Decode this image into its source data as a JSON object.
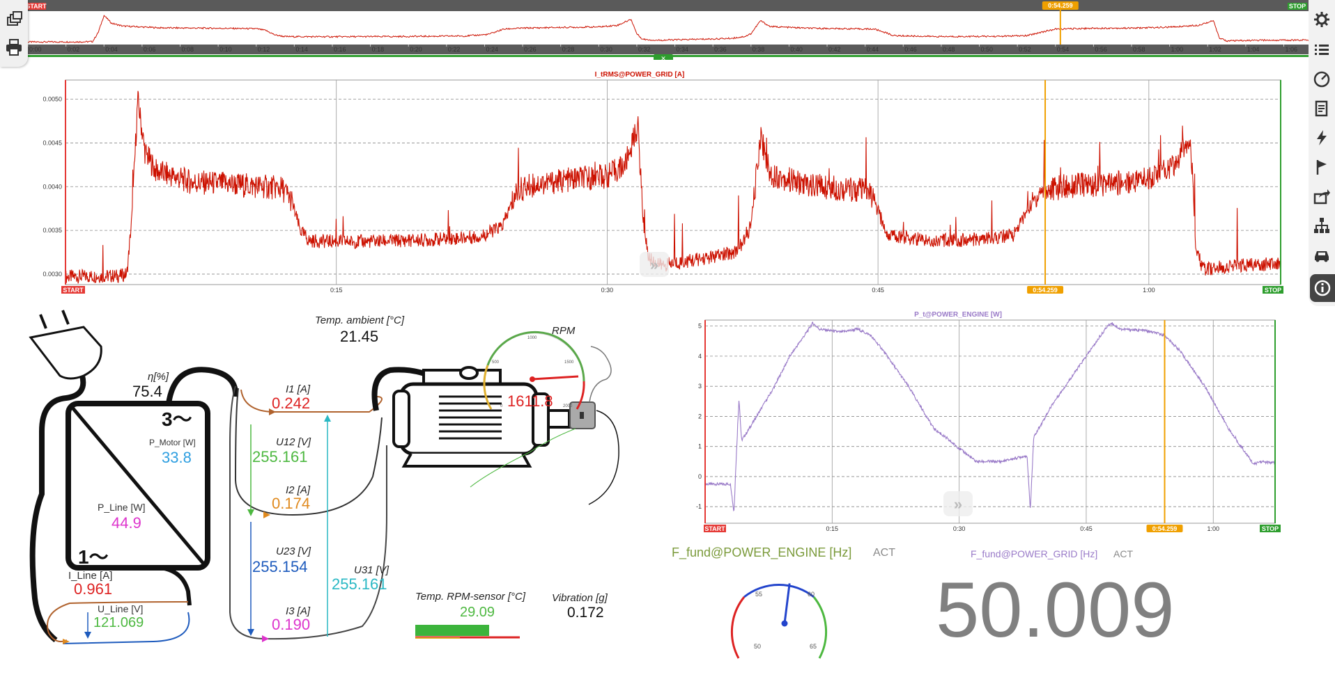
{
  "colors": {
    "grid_trace": "#cc1100",
    "engine_trace": "#9a7bc8",
    "cursor": "#f0a000",
    "start": "#e53935",
    "stop": "#2e9e2e",
    "blue": "#1e5bbd",
    "green": "#4db840",
    "orange": "#e08a1e",
    "magenta": "#dd33cc",
    "red": "#dd2222",
    "cyan": "#2ab8c4",
    "sky": "#2d9ee0",
    "gray": "#8a8a8a"
  },
  "overview": {
    "start_label": "START",
    "stop_label": "STOP",
    "cursor_label": "0:54.259",
    "ticks": [
      "0:00",
      "0:02",
      "0:04",
      "0:06",
      "0:08",
      "0:10",
      "0:12",
      "0:14",
      "0:16",
      "0:18",
      "0:20",
      "0:22",
      "0:24",
      "0:26",
      "0:28",
      "0:30",
      "0:32",
      "0:34",
      "0:36",
      "0:38",
      "0:40",
      "0:42",
      "0:44",
      "0:46",
      "0:48",
      "0:50",
      "0:52",
      "0:54",
      "0:56",
      "0:58",
      "1:00",
      "1:02",
      "1:04",
      "1:06"
    ]
  },
  "toolbar": {
    "left": [
      "windows-icon",
      "print-icon"
    ],
    "right": [
      "gear-icon",
      "list-icon",
      "gauge-icon",
      "report-icon",
      "lightning-icon",
      "flag-icon",
      "export-icon",
      "hierarchy-icon",
      "car-icon",
      "info-icon"
    ]
  },
  "chart_data": [
    {
      "type": "line",
      "title": "I_tRMS@POWER_GRID [A]",
      "x_ticks": [
        "0:15",
        "0:30",
        "0:45",
        "1:00"
      ],
      "x_tick_seconds": [
        15,
        30,
        45,
        60
      ],
      "xlim": [
        0,
        67.3
      ],
      "y_ticks": [
        "0.0030",
        "0.0035",
        "0.0040",
        "0.0045",
        "0.0050"
      ],
      "ylim": [
        0.00288,
        0.00522
      ],
      "series": [
        {
          "values": [
            [
              0,
              0.00297
            ],
            [
              3,
              0.00298
            ],
            [
              3.4,
              0.003
            ],
            [
              3.7,
              0.0037
            ],
            [
              4,
              0.005
            ],
            [
              4.4,
              0.0044
            ],
            [
              5,
              0.00418
            ],
            [
              7,
              0.00405
            ],
            [
              9,
              0.00403
            ],
            [
              11,
              0.004
            ],
            [
              12,
              0.00398
            ],
            [
              12.5,
              0.00385
            ],
            [
              13,
              0.0035
            ],
            [
              13.5,
              0.00338
            ],
            [
              16,
              0.00337
            ],
            [
              20,
              0.00339
            ],
            [
              23,
              0.00343
            ],
            [
              24.2,
              0.00355
            ],
            [
              25,
              0.00395
            ],
            [
              26,
              0.00403
            ],
            [
              28,
              0.00408
            ],
            [
              30,
              0.00412
            ],
            [
              31,
              0.00425
            ],
            [
              31.7,
              0.0047
            ],
            [
              32,
              0.0036
            ],
            [
              32.3,
              0.00318
            ],
            [
              33,
              0.0031
            ],
            [
              36,
              0.0032
            ],
            [
              37,
              0.00325
            ],
            [
              37.7,
              0.0034
            ],
            [
              38,
              0.0036
            ],
            [
              38.5,
              0.0046
            ],
            [
              39,
              0.00415
            ],
            [
              41,
              0.00402
            ],
            [
              43,
              0.00398
            ],
            [
              44.5,
              0.00395
            ],
            [
              45,
              0.00372
            ],
            [
              45.5,
              0.00345
            ],
            [
              48,
              0.00338
            ],
            [
              51,
              0.0034
            ],
            [
              52.5,
              0.00345
            ],
            [
              53.2,
              0.0037
            ],
            [
              54,
              0.00395
            ],
            [
              56,
              0.00402
            ],
            [
              58,
              0.00403
            ],
            [
              60,
              0.0041
            ],
            [
              61.5,
              0.00425
            ],
            [
              62.3,
              0.0046
            ],
            [
              62.6,
              0.0033
            ],
            [
              63,
              0.00305
            ],
            [
              65,
              0.0031
            ],
            [
              67.3,
              0.00312
            ]
          ]
        }
      ],
      "markers": {
        "start": "START",
        "stop": "STOP",
        "cursor": "0:54.259",
        "cursor_s": 54.259
      }
    },
    {
      "type": "line",
      "title": "P_t@POWER_ENGINE [W]",
      "x_ticks": [
        "0:15",
        "0:30",
        "0:45",
        "1:00"
      ],
      "x_tick_seconds": [
        15,
        30,
        45,
        60
      ],
      "xlim": [
        0,
        67.3
      ],
      "y_ticks": [
        "-1",
        "0",
        "1",
        "2",
        "3",
        "4",
        "5"
      ],
      "ylim": [
        -1.55,
        5.2
      ],
      "series": [
        {
          "values": [
            [
              0,
              -0.25
            ],
            [
              3,
              -0.25
            ],
            [
              3.4,
              -1.2
            ],
            [
              3.7,
              0.8
            ],
            [
              4,
              2.6
            ],
            [
              4.3,
              1.2
            ],
            [
              5,
              1.5
            ],
            [
              8,
              2.9
            ],
            [
              10,
              4.0
            ],
            [
              12,
              4.8
            ],
            [
              12.7,
              5.1
            ],
            [
              13.5,
              4.9
            ],
            [
              16,
              4.8
            ],
            [
              18,
              4.9
            ],
            [
              19.5,
              4.7
            ],
            [
              21,
              4.2
            ],
            [
              24,
              3.0
            ],
            [
              27,
              1.6
            ],
            [
              32,
              0.5
            ],
            [
              35,
              0.5
            ],
            [
              38,
              0.7
            ],
            [
              38.4,
              -1.1
            ],
            [
              38.8,
              1.3
            ],
            [
              41,
              2.4
            ],
            [
              44,
              3.6
            ],
            [
              47.5,
              5.0
            ],
            [
              48,
              5.1
            ],
            [
              49,
              4.9
            ],
            [
              52,
              4.85
            ],
            [
              54.2,
              4.7
            ],
            [
              56,
              4.2
            ],
            [
              59,
              3.0
            ],
            [
              62,
              1.5
            ],
            [
              64.8,
              0.4
            ],
            [
              65.5,
              0.5
            ],
            [
              67.3,
              0.45
            ]
          ]
        }
      ],
      "markers": {
        "start": "START",
        "stop": "STOP",
        "cursor": "0:54.259",
        "cursor_s": 54.259
      }
    }
  ],
  "diagram": {
    "eta": {
      "label": "η[%]",
      "value": "75.4"
    },
    "converter_3": "3～",
    "converter_1": "1～",
    "p_motor": {
      "label": "P_Motor [W]",
      "value": "33.8"
    },
    "p_line": {
      "label": "P_Line [W]",
      "value": "44.9"
    },
    "i_line": {
      "label": "I_Line [A]",
      "value": "0.961"
    },
    "u_line": {
      "label": "U_Line [V]",
      "value": "121.069"
    },
    "i1": {
      "label": "I1 [A]",
      "value": "0.242"
    },
    "u12": {
      "label": "U12 [V]",
      "value": "255.161"
    },
    "i2": {
      "label": "I2 [A]",
      "value": "0.174"
    },
    "u23": {
      "label": "U23 [V]",
      "value": "255.154"
    },
    "u31": {
      "label": "U31 [V]",
      "value": "255.161"
    },
    "i3": {
      "label": "I3 [A]",
      "value": "0.190"
    },
    "temp_ambient": {
      "label": "Temp. ambient [°C]",
      "value": "21.45"
    },
    "rpm": {
      "label": "RPM",
      "value": "1611.8",
      "dial": [
        "0",
        "500",
        "1000",
        "1500",
        "2000"
      ]
    },
    "temp_sensor": {
      "label": "Temp. RPM-sensor [°C]",
      "value": "29.09",
      "bar_fraction": 0.72
    },
    "vibration": {
      "label": "Vibration [g]",
      "value": "0.172"
    }
  },
  "freq_engine": {
    "label": "F_fund@POWER_ENGINE [Hz]",
    "mode": "ACT",
    "dial": [
      "50",
      "55",
      "60",
      "65"
    ],
    "value_hz": 58.0
  },
  "freq_grid": {
    "label": "F_fund@POWER_GRID [Hz]",
    "mode": "ACT",
    "value": "50.009"
  }
}
